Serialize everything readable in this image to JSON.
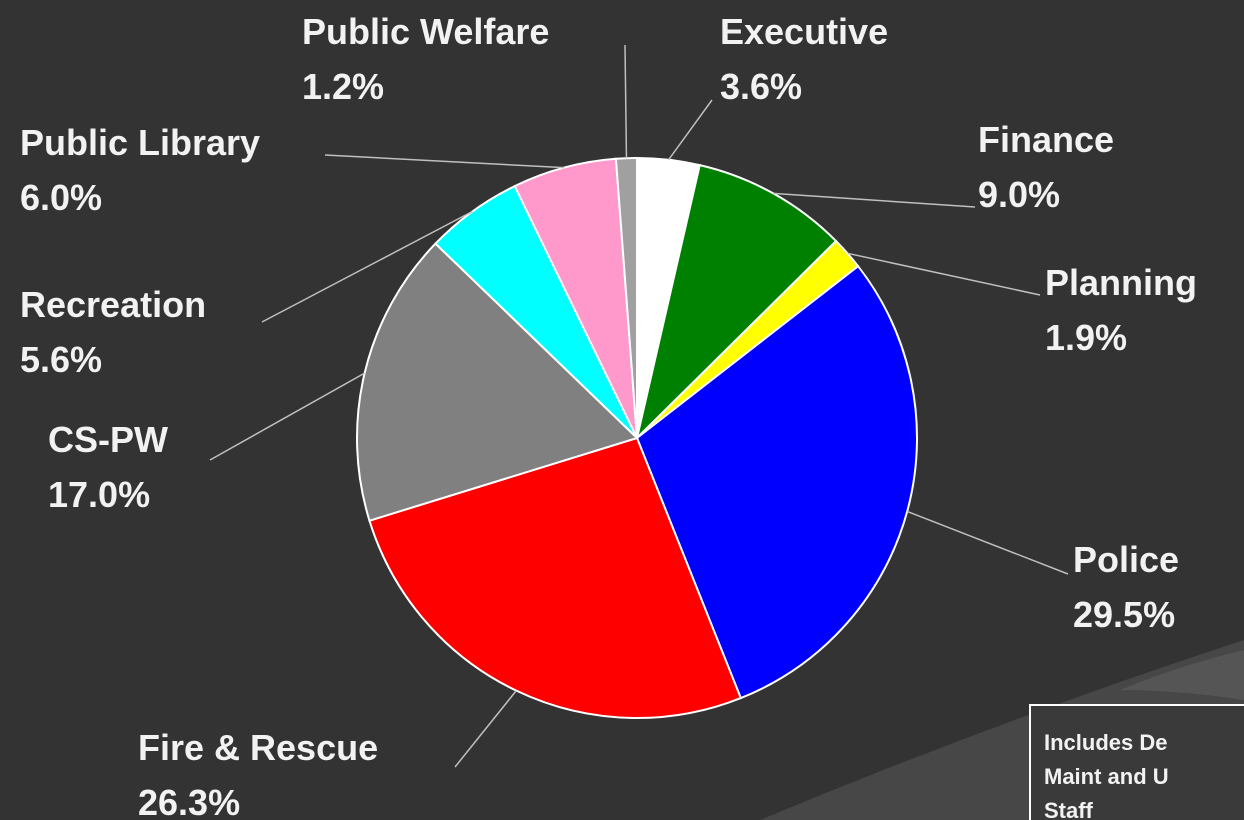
{
  "chart_data": {
    "type": "pie",
    "categories": [
      "Executive",
      "Finance",
      "Planning",
      "Police",
      "Fire & Rescue",
      "CS-PW",
      "Recreation",
      "Public Library",
      "Public Welfare"
    ],
    "values": [
      3.6,
      9.0,
      1.9,
      29.5,
      26.3,
      17.0,
      5.6,
      6.0,
      1.2
    ],
    "value_labels": [
      "3.6%",
      "9.0%",
      "1.9%",
      "29.5%",
      "26.3%",
      "17.0%",
      "5.6%",
      "6.0%",
      "1.2%"
    ],
    "colors": [
      "#ffffff",
      "#008000",
      "#ffff00",
      "#0000ff",
      "#ff0000",
      "#808080",
      "#00ffff",
      "#ff99cc",
      "#a0a0a0"
    ],
    "annotation": [
      "Includes De",
      "Maint and U",
      "Staff"
    ]
  }
}
